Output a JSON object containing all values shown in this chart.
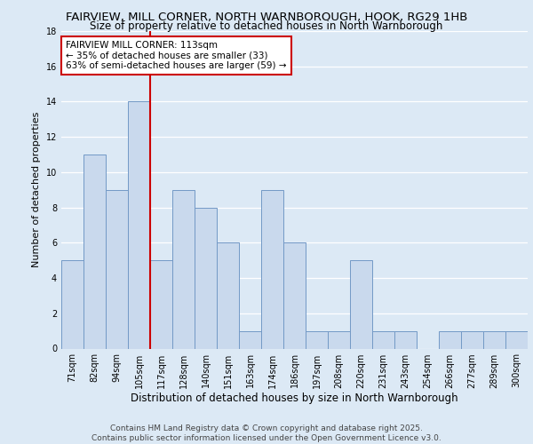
{
  "title1": "FAIRVIEW, MILL CORNER, NORTH WARNBOROUGH, HOOK, RG29 1HB",
  "title2": "Size of property relative to detached houses in North Warnborough",
  "xlabel": "Distribution of detached houses by size in North Warnborough",
  "ylabel": "Number of detached properties",
  "categories": [
    "71sqm",
    "82sqm",
    "94sqm",
    "105sqm",
    "117sqm",
    "128sqm",
    "140sqm",
    "151sqm",
    "163sqm",
    "174sqm",
    "186sqm",
    "197sqm",
    "208sqm",
    "220sqm",
    "231sqm",
    "243sqm",
    "254sqm",
    "266sqm",
    "277sqm",
    "289sqm",
    "300sqm"
  ],
  "values": [
    5,
    11,
    9,
    14,
    5,
    9,
    8,
    6,
    1,
    9,
    6,
    1,
    1,
    5,
    1,
    1,
    0,
    1,
    1,
    1,
    1
  ],
  "bar_color": "#c9d9ed",
  "bar_edge_color": "#7399c6",
  "vline_x_index": 4,
  "vline_color": "#cc0000",
  "annotation_text": "FAIRVIEW MILL CORNER: 113sqm\n← 35% of detached houses are smaller (33)\n63% of semi-detached houses are larger (59) →",
  "annotation_box_color": "#ffffff",
  "annotation_box_edge": "#cc0000",
  "bg_color": "#dce9f5",
  "plot_bg_color": "#dce9f5",
  "grid_color": "#ffffff",
  "ylim": [
    0,
    18
  ],
  "yticks": [
    0,
    2,
    4,
    6,
    8,
    10,
    12,
    14,
    16,
    18
  ],
  "footnote": "Contains HM Land Registry data © Crown copyright and database right 2025.\nContains public sector information licensed under the Open Government Licence v3.0.",
  "title1_fontsize": 9.5,
  "title2_fontsize": 8.5,
  "xlabel_fontsize": 8.5,
  "ylabel_fontsize": 8,
  "tick_fontsize": 7,
  "annotation_fontsize": 7.5,
  "footnote_fontsize": 6.5
}
